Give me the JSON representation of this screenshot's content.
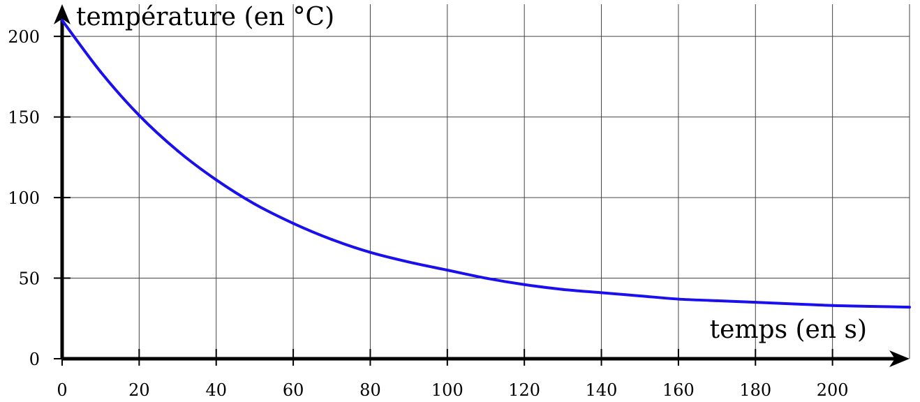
{
  "chart_data": {
    "type": "line",
    "title": "",
    "xlabel": "temps (en s)",
    "ylabel": "température (en °C)",
    "xlim": [
      0,
      220
    ],
    "ylim": [
      0,
      220
    ],
    "x_ticks": [
      0,
      20,
      40,
      60,
      80,
      100,
      120,
      140,
      160,
      180,
      200
    ],
    "y_ticks": [
      0,
      50,
      100,
      150,
      200
    ],
    "x_grid": [
      20,
      40,
      60,
      80,
      100,
      120,
      140,
      160,
      180,
      200,
      220
    ],
    "y_grid": [
      50,
      100,
      150,
      200
    ],
    "grid": true,
    "legend": "none",
    "series": [
      {
        "color": "#1a10ee",
        "x": [
          0,
          10,
          20,
          30,
          40,
          50,
          60,
          70,
          80,
          90,
          100,
          110,
          120,
          130,
          140,
          150,
          160,
          170,
          180,
          190,
          200,
          210,
          220
        ],
        "y": [
          210,
          178,
          151,
          129,
          111,
          96,
          84,
          74,
          66,
          60,
          55,
          50,
          46,
          43,
          41,
          39,
          37,
          36,
          35,
          34,
          33,
          32.5,
          32
        ]
      }
    ]
  }
}
